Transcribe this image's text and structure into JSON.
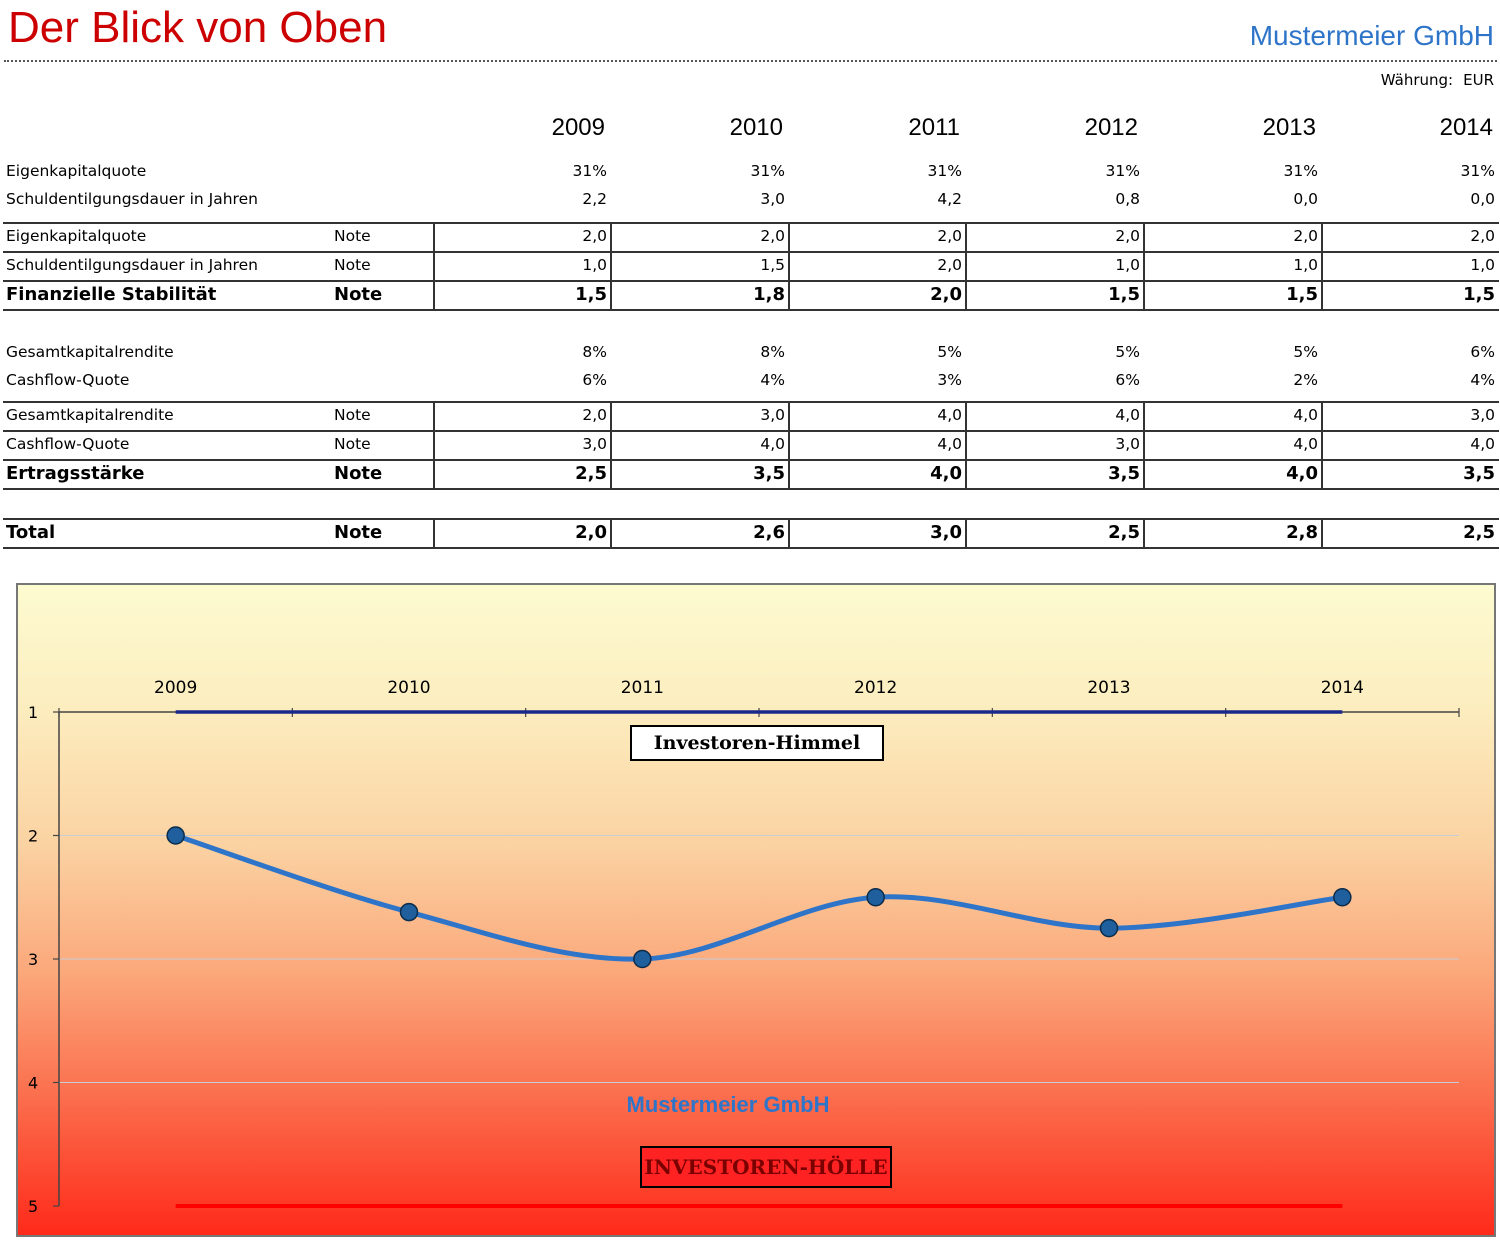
{
  "header": {
    "title": "Der Blick von Oben",
    "company": "Mustermeier GmbH",
    "currency_label": "Währung:",
    "currency_value": "EUR"
  },
  "table": {
    "years": [
      "2009",
      "2010",
      "2011",
      "2012",
      "2013",
      "2014"
    ],
    "note_label": "Note",
    "stability": {
      "metrics": [
        {
          "label": "Eigenkapitalquote",
          "values": [
            "31%",
            "31%",
            "31%",
            "31%",
            "31%",
            "31%"
          ]
        },
        {
          "label": "Schuldentilgungsdauer in Jahren",
          "values": [
            "2,2",
            "3,0",
            "4,2",
            "0,8",
            "0,0",
            "0,0"
          ]
        }
      ],
      "grades": [
        {
          "label": "Eigenkapitalquote",
          "values": [
            "2,0",
            "2,0",
            "2,0",
            "2,0",
            "2,0",
            "2,0"
          ]
        },
        {
          "label": "Schuldentilgungsdauer in Jahren",
          "values": [
            "1,0",
            "1,5",
            "2,0",
            "1,0",
            "1,0",
            "1,0"
          ]
        }
      ],
      "summary": {
        "label": "Finanzielle Stabilität",
        "values": [
          "1,5",
          "1,8",
          "2,0",
          "1,5",
          "1,5",
          "1,5"
        ]
      }
    },
    "earnings": {
      "metrics": [
        {
          "label": "Gesamtkapitalrendite",
          "values": [
            "8%",
            "8%",
            "5%",
            "5%",
            "5%",
            "6%"
          ]
        },
        {
          "label": "Cashflow-Quote",
          "values": [
            "6%",
            "4%",
            "3%",
            "6%",
            "2%",
            "4%"
          ]
        }
      ],
      "grades": [
        {
          "label": "Gesamtkapitalrendite",
          "values": [
            "2,0",
            "3,0",
            "4,0",
            "4,0",
            "4,0",
            "3,0"
          ]
        },
        {
          "label": "Cashflow-Quote",
          "values": [
            "3,0",
            "4,0",
            "4,0",
            "3,0",
            "4,0",
            "4,0"
          ]
        }
      ],
      "summary": {
        "label": "Ertragsstärke",
        "values": [
          "2,5",
          "3,5",
          "4,0",
          "3,5",
          "4,0",
          "3,5"
        ]
      }
    },
    "total": {
      "label": "Total",
      "values": [
        "2,0",
        "2,6",
        "3,0",
        "2,5",
        "2,8",
        "2,5"
      ]
    }
  },
  "chart_labels": {
    "heaven": "Investoren-Himmel",
    "hell": "INVESTOREN-HÖLLE",
    "company": "Mustermeier GmbH"
  },
  "chart_data": {
    "type": "line",
    "categories": [
      "2009",
      "2010",
      "2011",
      "2012",
      "2013",
      "2014"
    ],
    "series": [
      {
        "name": "Mustermeier GmbH",
        "values": [
          2.0,
          2.62,
          3.0,
          2.5,
          2.75,
          2.5
        ]
      }
    ],
    "reference_lines": [
      {
        "value": 1
      },
      {
        "value": 5
      }
    ],
    "ylim": [
      1,
      5
    ],
    "y_reversed": true,
    "y_ticks": [
      "1",
      "2",
      "3",
      "4",
      "5"
    ],
    "x_axis_position": "top",
    "grid": true,
    "smooth": true,
    "colors": {
      "series": "#2e75c9",
      "heaven_line": "#1a2a8a",
      "hell_line": "#ff0000",
      "marker_fill": "#1f5f9e"
    }
  }
}
